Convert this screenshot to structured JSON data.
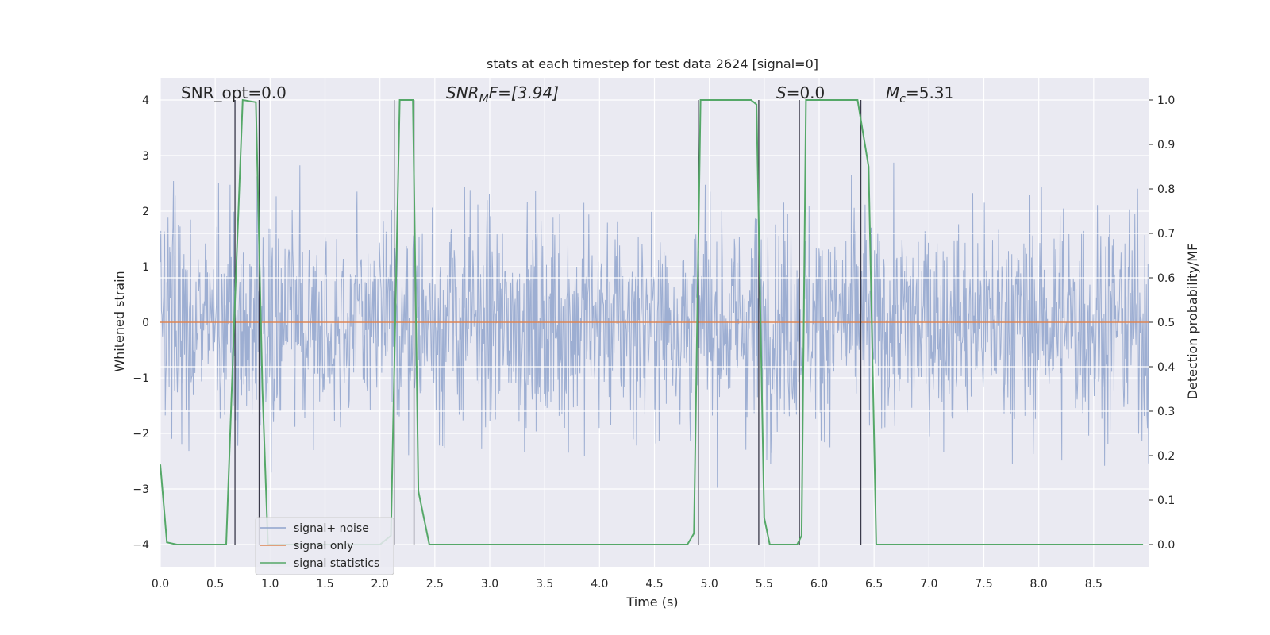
{
  "chart_data": {
    "type": "line",
    "title": "stats at each timestep for test data 2624 [signal=0]",
    "xlabel": "Time (s)",
    "ylabel": "Whitened strain",
    "ylabel_right": "Detection probability/MF",
    "xlim": [
      0,
      9.0
    ],
    "ylim": [
      -4.4,
      4.4
    ],
    "ylim_right": [
      -0.05,
      1.05
    ],
    "xticks": [
      "0.0",
      "0.5",
      "1.0",
      "1.5",
      "2.0",
      "2.5",
      "3.0",
      "3.5",
      "4.0",
      "4.5",
      "5.0",
      "5.5",
      "6.0",
      "6.5",
      "7.0",
      "7.5",
      "8.0",
      "8.5"
    ],
    "xtick_values": [
      0,
      0.5,
      1,
      1.5,
      2,
      2.5,
      3,
      3.5,
      4,
      4.5,
      5,
      5.5,
      6,
      6.5,
      7,
      7.5,
      8,
      8.5
    ],
    "yticks": [
      "4",
      "3",
      "2",
      "1",
      "0",
      "−1",
      "−2",
      "−3",
      "−4"
    ],
    "ytick_values": [
      4,
      3,
      2,
      1,
      0,
      -1,
      -2,
      -3,
      -4
    ],
    "yticks_right": [
      "1.0",
      "0.9",
      "0.8",
      "0.7",
      "0.6",
      "0.5",
      "0.4",
      "0.3",
      "0.2",
      "0.1",
      "0.0"
    ],
    "ytick_right_values": [
      1.0,
      0.9,
      0.8,
      0.7,
      0.6,
      0.5,
      0.4,
      0.3,
      0.2,
      0.1,
      0.0
    ],
    "right_hlines": [
      0.7,
      0.6,
      0.4,
      0.3
    ],
    "annotations": {
      "snr_opt": "SNR_opt=0.0",
      "snr_mf_main": "SNR",
      "snr_mf_sub": "M",
      "snr_mf_rest": "F=[3.94]",
      "s_main": "S",
      "s_rest": "=0.0",
      "mc_main": "M",
      "mc_sub": "c",
      "mc_rest": "=5.31"
    },
    "series": [
      {
        "name": "signal+ noise",
        "color": "#8fa3cc",
        "axis": "left",
        "description_values": "noise-like whitened strain, roughly gaussian, amplitude range about -3.8 to 3.3"
      },
      {
        "name": "signal only",
        "color": "#dd8452",
        "axis": "left",
        "x": [
          0,
          9.0
        ],
        "y": [
          0,
          0
        ]
      },
      {
        "name": "signal statistics",
        "color": "#55a868",
        "axis": "right",
        "x": [
          0.0,
          0.06,
          0.15,
          0.6,
          0.68,
          0.75,
          0.87,
          0.93,
          0.98,
          1.5,
          2.0,
          2.1,
          2.18,
          2.3,
          2.35,
          2.45,
          4.8,
          4.86,
          4.92,
          5.38,
          5.43,
          5.5,
          5.55,
          5.8,
          5.84,
          5.88,
          6.35,
          6.45,
          6.52,
          6.6,
          8.95
        ],
        "y": [
          0.18,
          0.005,
          0.0,
          0.0,
          0.55,
          1.0,
          0.995,
          0.35,
          0.0,
          0.0,
          0.0,
          0.02,
          1.0,
          1.0,
          0.12,
          0.0,
          0.0,
          0.025,
          1.0,
          1.0,
          0.99,
          0.06,
          0.0,
          0.0,
          0.02,
          1.0,
          1.0,
          0.85,
          0.0,
          0.0,
          0.0
        ]
      }
    ],
    "vlines": [
      0.68,
      0.9,
      2.13,
      2.31,
      4.9,
      5.45,
      5.82,
      6.38
    ],
    "legend": {
      "placement": "lower-left",
      "entries": [
        "signal+ noise",
        "signal only",
        "signal statistics"
      ]
    },
    "grid": true,
    "colors": {
      "background": "#eaeaf2",
      "grid": "#ffffff",
      "vline": "#3a3a4a"
    }
  }
}
